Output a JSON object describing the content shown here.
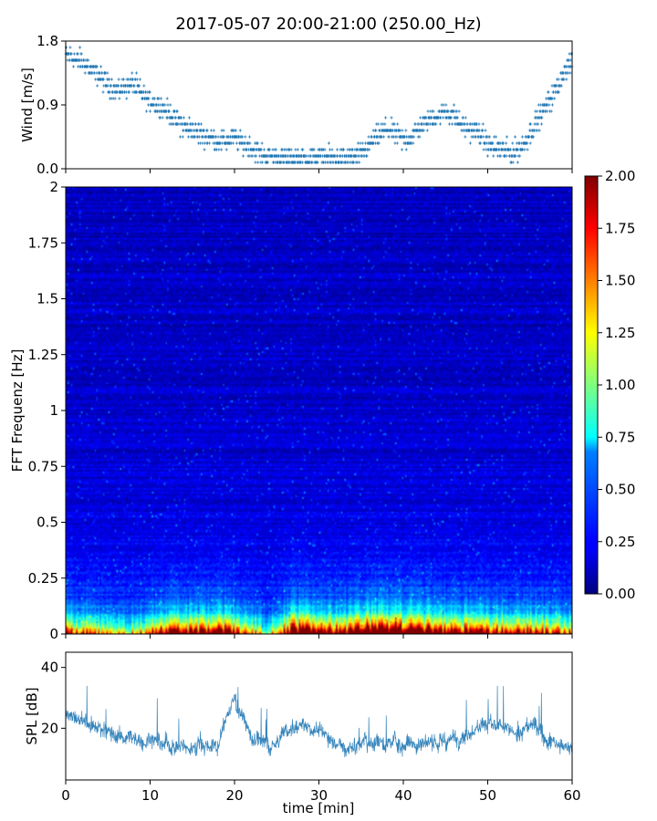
{
  "title": "2017-05-07 20:00-21:00 (250.00_Hz)",
  "colors": {
    "series": "#1f77b4",
    "colormap": "jet"
  },
  "chart_data": [
    {
      "id": "wind",
      "type": "scatter",
      "ylabel": "Wind [m/s]",
      "xlim": [
        0,
        60
      ],
      "ylim": [
        0,
        1.8
      ],
      "yticks": [
        0,
        0.9,
        1.8
      ],
      "ytick_labels": [
        "0.0",
        "0.9",
        "1.8"
      ],
      "marker": "+",
      "quantization_step": 0.09,
      "trend": {
        "x": [
          0,
          1,
          2,
          3,
          4,
          5,
          6,
          7,
          8,
          9,
          10,
          11,
          12,
          13,
          14,
          15,
          16,
          17,
          18,
          19,
          20,
          21,
          22,
          23,
          24,
          25,
          26,
          27,
          28,
          29,
          30,
          31,
          32,
          33,
          34,
          35,
          36,
          37,
          38,
          39,
          40,
          41,
          42,
          43,
          44,
          45,
          46,
          47,
          48,
          49,
          50,
          51,
          52,
          53,
          54,
          55,
          56,
          57,
          58,
          59,
          60
        ],
        "y": [
          1.6,
          1.55,
          1.5,
          1.4,
          1.3,
          1.2,
          1.1,
          1.15,
          1.2,
          1.05,
          0.95,
          0.9,
          0.8,
          0.7,
          0.6,
          0.55,
          0.5,
          0.45,
          0.4,
          0.38,
          0.45,
          0.35,
          0.3,
          0.22,
          0.18,
          0.16,
          0.15,
          0.15,
          0.14,
          0.15,
          0.17,
          0.15,
          0.14,
          0.15,
          0.16,
          0.2,
          0.35,
          0.45,
          0.55,
          0.5,
          0.4,
          0.45,
          0.6,
          0.7,
          0.75,
          0.8,
          0.75,
          0.6,
          0.55,
          0.5,
          0.35,
          0.3,
          0.25,
          0.22,
          0.3,
          0.5,
          0.7,
          0.9,
          1.1,
          1.35,
          1.5
        ]
      }
    },
    {
      "id": "spectrogram",
      "type": "heatmap",
      "ylabel": "FFT Frequenz [Hz]",
      "xlim": [
        0,
        60
      ],
      "ylim": [
        0,
        2
      ],
      "yticks": [
        0,
        0.25,
        0.5,
        0.75,
        1,
        1.25,
        1.5,
        1.75,
        2
      ],
      "ytick_labels": [
        "0",
        "0.25",
        "0.5",
        "0.75",
        "1",
        "1.25",
        "1.5",
        "1.75",
        "2"
      ],
      "colorbar": {
        "range": [
          0,
          2
        ],
        "ticks": [
          0,
          0.25,
          0.5,
          0.75,
          1,
          1.25,
          1.5,
          1.75,
          2
        ],
        "tick_labels": [
          "0.00",
          "0.25",
          "0.50",
          "0.75",
          "1.00",
          "1.25",
          "1.50",
          "1.75",
          "2.00"
        ]
      },
      "description_profile": {
        "time_min": [
          0,
          3,
          6,
          9,
          12,
          15,
          18,
          21,
          24,
          27,
          30,
          33,
          36,
          39,
          42,
          45,
          48,
          51,
          54,
          57,
          60
        ],
        "low_freq_intensity": [
          1.2,
          1.0,
          0.8,
          0.9,
          1.6,
          1.5,
          1.7,
          1.2,
          0.6,
          1.8,
          1.7,
          1.4,
          2.0,
          2.0,
          1.8,
          1.6,
          1.5,
          1.4,
          1.3,
          1.2,
          1.0
        ]
      }
    },
    {
      "id": "spl",
      "type": "line",
      "xlabel": "time [min]",
      "ylabel": "SPL [dB]",
      "xlim": [
        0,
        60
      ],
      "ylim": [
        3,
        45
      ],
      "xticks": [
        0,
        10,
        20,
        30,
        40,
        50,
        60
      ],
      "xtick_labels": [
        "0",
        "10",
        "20",
        "30",
        "40",
        "50",
        "60"
      ],
      "yticks": [
        20,
        40
      ],
      "ytick_labels": [
        "20",
        "40"
      ],
      "envelope": {
        "x": [
          0,
          1,
          2,
          3,
          4,
          5,
          6,
          7,
          8,
          9,
          10,
          11,
          12,
          13,
          14,
          15,
          16,
          17,
          18,
          19,
          20,
          21,
          22,
          23,
          24,
          25,
          26,
          27,
          28,
          29,
          30,
          31,
          32,
          33,
          34,
          35,
          36,
          37,
          38,
          39,
          40,
          41,
          42,
          43,
          44,
          45,
          46,
          47,
          48,
          49,
          50,
          51,
          52,
          53,
          54,
          55,
          56,
          57,
          58,
          59,
          60
        ],
        "y": [
          25,
          24,
          22,
          21,
          20,
          19,
          18,
          17,
          16,
          16,
          17,
          16,
          15,
          14,
          14,
          14,
          15,
          14,
          14,
          24,
          30,
          24,
          17,
          15,
          14,
          15,
          19,
          20,
          21,
          20,
          19,
          17,
          16,
          14,
          14,
          15,
          15,
          16,
          15,
          16,
          15,
          16,
          15,
          15,
          16,
          15,
          17,
          18,
          19,
          21,
          22,
          20,
          19,
          18,
          19,
          21,
          20,
          17,
          15,
          14,
          12
        ]
      }
    }
  ]
}
